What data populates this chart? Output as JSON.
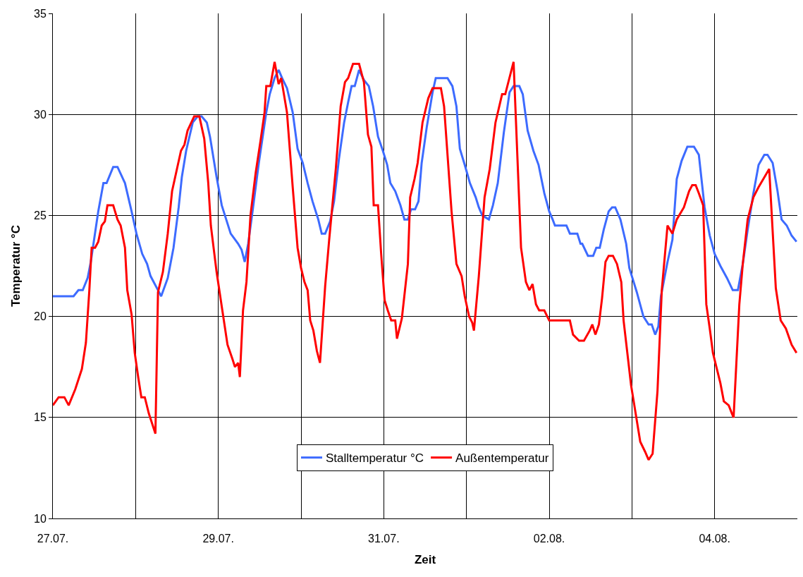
{
  "chart_data": {
    "type": "line",
    "xlabel": "Zeit",
    "ylabel": "Temperatur °C",
    "xlim": [
      "--07-27",
      "--08-05"
    ],
    "ylim": [
      10,
      35
    ],
    "xticks": [
      {
        "value": "--07-27",
        "label": "27.07."
      },
      {
        "value": "--07-28",
        "label": null
      },
      {
        "value": "--07-29",
        "label": "29.07."
      },
      {
        "value": "--07-30",
        "label": null
      },
      {
        "value": "--07-31",
        "label": "31.07."
      },
      {
        "value": "--08-01",
        "label": null
      },
      {
        "value": "--08-02",
        "label": "02.08."
      },
      {
        "value": "--08-03",
        "label": null
      },
      {
        "value": "--08-04",
        "label": "04.08."
      }
    ],
    "yticks": [
      10,
      15,
      20,
      25,
      30,
      35
    ],
    "grid": true,
    "legend": "bottom",
    "marker": "none",
    "line_style": "solid",
    "series": [
      {
        "name": "Stalltemperatur °C",
        "color": "#3d6bff",
        "x": [
          "--07-27T00:00",
          "--07-27T06:00",
          "--07-27T07:25",
          "--07-27T08:40",
          "--07-27T10:05",
          "--07-27T11:00",
          "--07-27T13:10",
          "--07-27T14:40",
          "--07-27T15:35",
          "--07-27T17:30",
          "--07-27T18:45",
          "--07-27T20:55",
          "--07-27T22:50",
          "--07-28T00:15",
          "--07-28T01:55",
          "--07-28T03:20",
          "--07-28T04:20",
          "--07-28T06:30",
          "--07-28T07:25",
          "--07-28T09:20",
          "--07-28T11:00",
          "--07-28T12:30",
          "--07-28T13:25",
          "--07-28T14:40",
          "--07-28T16:35",
          "--07-28T18:00",
          "--07-28T19:10",
          "--07-28T20:40",
          "--07-28T21:35",
          "--07-28T23:30",
          "--07-29T01:00",
          "--07-29T03:35",
          "--07-29T05:45",
          "--07-29T06:45",
          "--07-29T07:40",
          "--07-29T08:40",
          "--07-29T10:05",
          "--07-29T11:45",
          "--07-29T13:55",
          "--07-29T14:55",
          "--07-29T16:20",
          "--07-29T17:30",
          "--07-29T18:30",
          "--07-29T19:55",
          "--07-29T21:35",
          "--07-29T23:00",
          "--07-30T00:30",
          "--07-30T01:55",
          "--07-30T03:20",
          "--07-30T05:00",
          "--07-30T06:00",
          "--07-30T07:00",
          "--07-30T08:25",
          "--07-30T09:35",
          "--07-30T11:00",
          "--07-30T12:30",
          "--07-30T13:40",
          "--07-30T14:40",
          "--07-30T15:35",
          "--07-30T16:50",
          "--07-30T18:15",
          "--07-30T19:40",
          "--07-30T20:55",
          "--07-30T22:20",
          "--07-30T23:45",
          "--07-31T01:00",
          "--07-31T01:55",
          "--07-31T03:20",
          "--07-31T04:50",
          "--07-31T06:00",
          "--07-31T07:00",
          "--07-31T07:55",
          "--07-31T09:05",
          "--07-31T10:05",
          "--07-31T11:00",
          "--07-31T12:30",
          "--07-31T14:10",
          "--07-31T15:05",
          "--07-31T18:30",
          "--07-31T19:55",
          "--07-31T21:05",
          "--07-31T22:05",
          "--07-31T23:30",
          "--08-01T01:00",
          "--08-01T02:40",
          "--08-01T03:35",
          "--08-01T04:35",
          "--08-01T06:30",
          "--08-01T07:40",
          "--08-01T09:05",
          "--08-01T10:50",
          "--08-01T12:30",
          "--08-01T13:40",
          "--08-01T15:20",
          "--08-01T16:20",
          "--08-01T17:45",
          "--08-01T19:25",
          "--08-01T20:55",
          "--08-01T22:35",
          "--08-02T00:00",
          "--08-02T01:00",
          "--08-02T01:40",
          "--08-02T05:00",
          "--08-02T06:00",
          "--08-02T08:10",
          "--08-02T09:05",
          "--08-02T09:35",
          "--08-02T11:15",
          "--08-02T12:45",
          "--08-02T13:40",
          "--08-02T14:40",
          "--08-02T15:50",
          "--08-02T17:15",
          "--08-02T18:15",
          "--08-02T19:10",
          "--08-02T20:40",
          "--08-02T22:20",
          "--08-02T23:15",
          "--08-03T01:25",
          "--08-03T03:20",
          "--08-03T04:50",
          "--08-03T05:45",
          "--08-03T06:45",
          "--08-03T07:40",
          "--08-03T08:25",
          "--08-03T10:20",
          "--08-03T11:45",
          "--08-03T13:00",
          "--08-03T14:25",
          "--08-03T16:05",
          "--08-03T18:00",
          "--08-03T19:25",
          "--08-03T21:05",
          "--08-03T22:35",
          "--08-04T00:00",
          "--08-04T01:40",
          "--08-04T03:35",
          "--08-04T05:15",
          "--08-04T06:45",
          "--08-04T08:10",
          "--08-04T09:35",
          "--08-04T11:15",
          "--08-04T12:45",
          "--08-04T14:25",
          "--08-04T15:20",
          "--08-04T16:50",
          "--08-04T18:15",
          "--08-04T19:25",
          "--08-04T20:55",
          "--08-04T22:20",
          "--08-04T23:45"
        ],
        "values": [
          21.0,
          21.0,
          21.3,
          21.3,
          21.9,
          22.7,
          25.2,
          26.6,
          26.6,
          27.4,
          27.4,
          26.6,
          25.2,
          24.1,
          23.1,
          22.6,
          22.0,
          21.3,
          21.0,
          21.9,
          23.4,
          25.4,
          26.9,
          28.2,
          29.6,
          29.9,
          29.9,
          29.6,
          28.9,
          26.9,
          25.5,
          24.1,
          23.6,
          23.3,
          22.7,
          23.6,
          25.4,
          27.6,
          30.1,
          31.0,
          31.8,
          32.2,
          31.8,
          31.3,
          30.1,
          28.3,
          27.6,
          26.6,
          25.7,
          24.8,
          24.1,
          24.1,
          24.7,
          25.7,
          27.8,
          29.6,
          30.6,
          31.4,
          31.4,
          32.2,
          31.7,
          31.4,
          30.4,
          28.9,
          28.2,
          27.5,
          26.6,
          26.2,
          25.5,
          24.8,
          24.8,
          25.3,
          25.3,
          25.7,
          27.6,
          29.4,
          31.1,
          31.8,
          31.8,
          31.4,
          30.4,
          28.3,
          27.5,
          26.6,
          25.9,
          25.4,
          25.0,
          24.8,
          25.5,
          26.6,
          29.1,
          31.1,
          31.4,
          31.4,
          31.0,
          29.2,
          28.2,
          27.5,
          26.1,
          25.2,
          24.8,
          24.5,
          24.5,
          24.1,
          24.1,
          23.6,
          23.6,
          23.0,
          23.0,
          23.4,
          23.4,
          24.3,
          25.2,
          25.4,
          25.4,
          24.8,
          23.6,
          22.4,
          21.2,
          20.0,
          19.6,
          19.6,
          19.1,
          19.5,
          21.0,
          22.7,
          23.8,
          26.8,
          27.7,
          28.4,
          28.4,
          28.0,
          25.4,
          24.0,
          23.1,
          22.5,
          21.9,
          21.3,
          21.3,
          22.6,
          24.3,
          26.1,
          27.5,
          28.0,
          28.0,
          27.6,
          26.2,
          24.8,
          24.5,
          24.0,
          23.7
        ]
      },
      {
        "name": "Außentemperatur",
        "color": "#ff0000",
        "x": [
          "--07-27T00:00",
          "--07-27T01:40",
          "--07-27T03:20",
          "--07-27T04:35",
          "--07-27T06:30",
          "--07-27T08:25",
          "--07-27T09:35",
          "--07-27T10:35",
          "--07-27T11:15",
          "--07-27T12:15",
          "--07-27T13:10",
          "--07-27T14:10",
          "--07-27T15:05",
          "--07-27T15:50",
          "--07-27T17:30",
          "--07-27T18:45",
          "--07-27T19:40",
          "--07-27T20:55",
          "--07-27T21:35",
          "--07-27T22:50",
          "--07-27T23:45",
          "--07-28T00:45",
          "--07-28T01:40",
          "--07-28T02:40",
          "--07-28T03:50",
          "--07-28T05:45",
          "--07-28T06:30",
          "--07-28T07:55",
          "--07-28T09:20",
          "--07-28T10:35",
          "--07-28T12:00",
          "--07-28T13:10",
          "--07-28T14:10",
          "--07-28T15:05",
          "--07-28T17:00",
          "--07-28T18:30",
          "--07-28T19:55",
          "--07-28T21:05",
          "--07-28T21:50",
          "--07-28T23:30",
          "--07-29T01:10",
          "--07-29T02:40",
          "--07-29T04:05",
          "--07-29T04:50",
          "--07-29T05:45",
          "--07-29T06:15",
          "--07-29T07:10",
          "--07-29T08:10",
          "--07-29T09:20",
          "--07-29T10:50",
          "--07-29T12:15",
          "--07-29T13:25",
          "--07-29T13:55",
          "--07-29T15:05",
          "--07-29T16:20",
          "--07-29T17:30",
          "--07-29T18:15",
          "--07-29T19:55",
          "--07-29T21:35",
          "--07-29T23:00",
          "--07-30T00:00",
          "--07-30T01:00",
          "--07-30T01:55",
          "--07-30T02:40",
          "--07-30T03:35",
          "--07-30T04:35",
          "--07-30T05:30",
          "--07-30T07:00",
          "--07-30T08:10",
          "--07-30T10:05",
          "--07-30T11:30",
          "--07-30T12:45",
          "--07-30T13:40",
          "--07-30T15:05",
          "--07-30T16:50",
          "--07-30T18:15",
          "--07-30T19:25",
          "--07-30T20:25",
          "--07-30T21:05",
          "--07-30T22:20",
          "--07-30T23:15",
          "--07-31T00:15",
          "--07-31T01:10",
          "--07-31T02:10",
          "--07-31T03:20",
          "--07-31T03:50",
          "--07-31T05:15",
          "--07-31T07:00",
          "--07-31T07:40",
          "--07-31T08:55",
          "--07-31T09:50",
          "--07-31T11:15",
          "--07-31T12:55",
          "--07-31T14:10",
          "--07-31T16:35",
          "--07-31T17:30",
          "--07-31T19:40",
          "--07-31T21:05",
          "--07-31T22:35",
          "--07-31T23:30",
          "--08-01T00:45",
          "--08-01T01:40",
          "--08-01T02:10",
          "--08-01T03:35",
          "--08-01T05:15",
          "--08-01T06:45",
          "--08-01T08:25",
          "--08-01T10:20",
          "--08-01T11:15",
          "--08-01T13:40",
          "--08-01T15:50",
          "--08-01T17:15",
          "--08-01T18:15",
          "--08-01T19:10",
          "--08-01T20:10",
          "--08-01T21:05",
          "--08-01T22:35",
          "--08-02T00:00",
          "--08-02T06:00",
          "--08-02T06:55",
          "--08-02T08:40",
          "--08-02T10:05",
          "--08-02T11:45",
          "--08-02T12:30",
          "--08-02T13:25",
          "--08-02T14:25",
          "--08-02T15:20",
          "--08-02T16:20",
          "--08-02T17:15",
          "--08-02T18:30",
          "--08-02T19:40",
          "--08-02T20:55",
          "--08-02T21:35",
          "--08-02T23:45",
          "--08-03T02:25",
          "--08-03T03:50",
          "--08-03T04:50",
          "--08-03T06:00",
          "--08-03T07:25",
          "--08-03T08:40",
          "--08-03T10:20",
          "--08-03T11:45",
          "--08-03T13:00",
          "--08-03T15:05",
          "--08-03T16:35",
          "--08-03T17:30",
          "--08-03T18:30",
          "--08-03T19:25",
          "--08-03T20:40",
          "--08-03T21:35",
          "--08-03T22:35",
          "--08-03T23:30",
          "--08-04T00:30",
          "--08-04T01:40",
          "--08-04T02:40",
          "--08-04T04:05",
          "--08-04T05:00",
          "--08-04T05:30",
          "--08-04T07:10",
          "--08-04T08:10",
          "--08-04T09:35",
          "--08-04T11:15",
          "--08-04T12:45",
          "--08-04T15:50",
          "--08-04T17:45",
          "--08-04T19:10",
          "--08-04T20:40",
          "--08-04T22:20",
          "--08-04T23:45"
        ],
        "values": [
          15.6,
          16.0,
          16.0,
          15.6,
          16.4,
          17.4,
          18.7,
          21.3,
          23.4,
          23.4,
          23.7,
          24.5,
          24.7,
          25.5,
          25.5,
          24.8,
          24.5,
          23.4,
          21.3,
          20.1,
          18.2,
          17.0,
          16.0,
          16.0,
          15.2,
          14.2,
          21.2,
          22.2,
          24.1,
          26.2,
          27.3,
          28.2,
          28.5,
          29.2,
          29.9,
          29.9,
          28.8,
          26.6,
          24.5,
          22.2,
          20.3,
          18.6,
          17.9,
          17.5,
          17.7,
          17.0,
          20.3,
          21.7,
          25.0,
          27.1,
          28.7,
          30.1,
          31.4,
          31.4,
          32.6,
          31.5,
          31.8,
          30.1,
          26.4,
          23.4,
          22.4,
          21.7,
          21.3,
          19.8,
          19.3,
          18.3,
          17.7,
          21.5,
          23.8,
          27.3,
          30.4,
          31.6,
          31.8,
          32.5,
          32.5,
          31.6,
          29.0,
          28.4,
          25.5,
          25.5,
          23.1,
          20.8,
          20.3,
          19.8,
          19.8,
          18.9,
          19.9,
          22.6,
          25.9,
          26.8,
          27.6,
          29.6,
          30.8,
          31.3,
          31.3,
          30.4,
          25.2,
          22.6,
          22.0,
          21.0,
          20.0,
          19.7,
          19.3,
          22.0,
          25.9,
          27.3,
          29.6,
          31.0,
          31.0,
          32.6,
          23.4,
          21.7,
          21.3,
          21.6,
          20.6,
          20.3,
          20.3,
          19.8,
          19.8,
          19.1,
          18.8,
          18.8,
          19.3,
          19.6,
          19.1,
          19.6,
          20.9,
          22.7,
          23.0,
          23.0,
          22.6,
          21.7,
          19.8,
          16.6,
          13.8,
          13.3,
          12.9,
          13.2,
          16.3,
          21.3,
          24.5,
          24.1,
          24.8,
          25.4,
          26.2,
          26.5,
          26.5,
          26.1,
          25.5,
          20.6,
          19.4,
          18.2,
          17.5,
          16.7,
          15.8,
          15.6,
          15.2,
          15.0,
          20.6,
          22.6,
          24.8,
          25.9,
          26.4,
          27.3,
          21.4,
          19.8,
          19.4,
          18.6,
          18.2
        ]
      }
    ]
  }
}
